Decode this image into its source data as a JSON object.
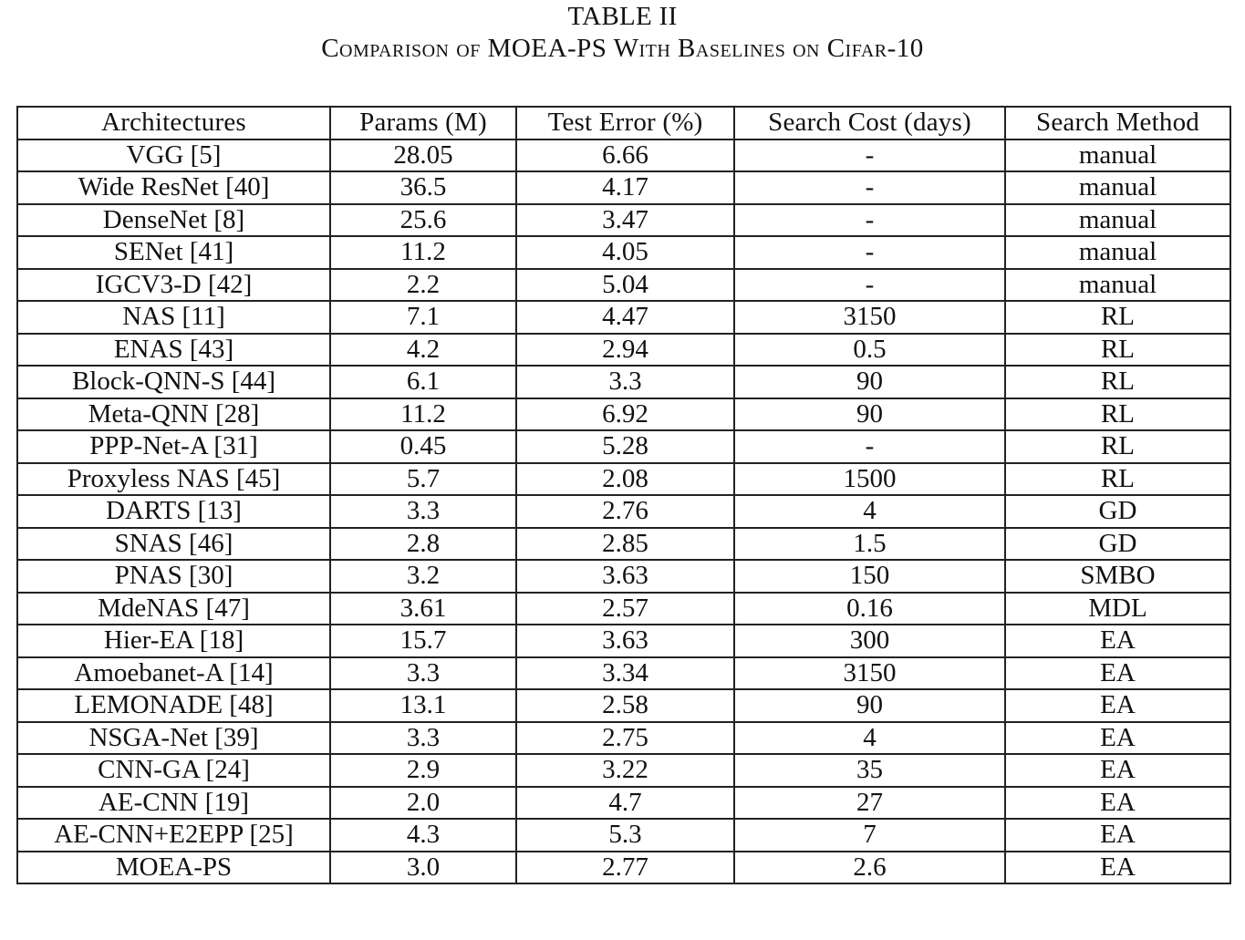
{
  "table_label": "TABLE II",
  "table_title": "Comparison of MOEA-PS With Baselines on Cifar-10",
  "columns": [
    "Architectures",
    "Params (M)",
    "Test Error (%)",
    "Search Cost (days)",
    "Search Method"
  ],
  "rows": [
    [
      "VGG [5]",
      "28.05",
      "6.66",
      "-",
      "manual"
    ],
    [
      "Wide ResNet [40]",
      "36.5",
      "4.17",
      "-",
      "manual"
    ],
    [
      "DenseNet [8]",
      "25.6",
      "3.47",
      "-",
      "manual"
    ],
    [
      "SENet [41]",
      "11.2",
      "4.05",
      "-",
      "manual"
    ],
    [
      "IGCV3-D [42]",
      "2.2",
      "5.04",
      "-",
      "manual"
    ],
    [
      "NAS [11]",
      "7.1",
      "4.47",
      "3150",
      "RL"
    ],
    [
      "ENAS [43]",
      "4.2",
      "2.94",
      "0.5",
      "RL"
    ],
    [
      "Block-QNN-S [44]",
      "6.1",
      "3.3",
      "90",
      "RL"
    ],
    [
      "Meta-QNN [28]",
      "11.2",
      "6.92",
      "90",
      "RL"
    ],
    [
      "PPP-Net-A [31]",
      "0.45",
      "5.28",
      "-",
      "RL"
    ],
    [
      "Proxyless NAS [45]",
      "5.7",
      "2.08",
      "1500",
      "RL"
    ],
    [
      "DARTS [13]",
      "3.3",
      "2.76",
      "4",
      "GD"
    ],
    [
      "SNAS [46]",
      "2.8",
      "2.85",
      "1.5",
      "GD"
    ],
    [
      "PNAS [30]",
      "3.2",
      "3.63",
      "150",
      "SMBO"
    ],
    [
      "MdeNAS [47]",
      "3.61",
      "2.57",
      "0.16",
      "MDL"
    ],
    [
      "Hier-EA [18]",
      "15.7",
      "3.63",
      "300",
      "EA"
    ],
    [
      "Amoebanet-A [14]",
      "3.3",
      "3.34",
      "3150",
      "EA"
    ],
    [
      "LEMONADE [48]",
      "13.1",
      "2.58",
      "90",
      "EA"
    ],
    [
      "NSGA-Net [39]",
      "3.3",
      "2.75",
      "4",
      "EA"
    ],
    [
      "CNN-GA [24]",
      "2.9",
      "3.22",
      "35",
      "EA"
    ],
    [
      "AE-CNN [19]",
      "2.0",
      "4.7",
      "27",
      "EA"
    ],
    [
      "AE-CNN+E2EPP [25]",
      "4.3",
      "5.3",
      "7",
      "EA"
    ],
    [
      "MOEA-PS",
      "3.0",
      "2.77",
      "2.6",
      "EA"
    ]
  ]
}
